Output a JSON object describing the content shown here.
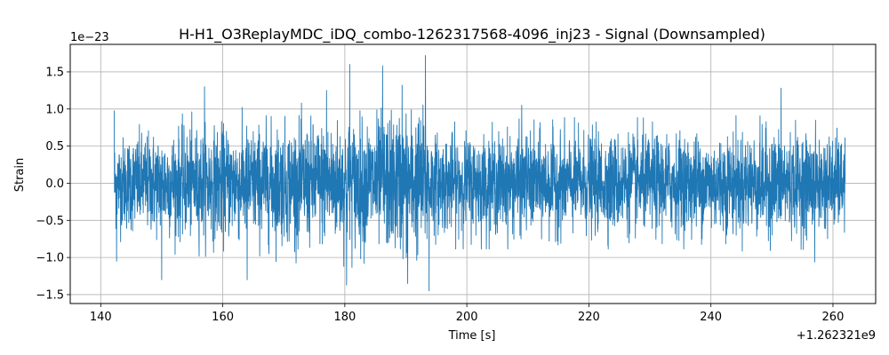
{
  "chart_data": {
    "type": "line",
    "title": "H-H1_O3ReplayMDC_iDQ_combo-1262317568-4096_inj23 - Signal (Downsampled)",
    "xlabel": "Time [s]",
    "ylabel": "Strain",
    "x_offset_label": "+1.262321e9",
    "y_scale_label": "1e−23",
    "xlim": [
      135,
      267
    ],
    "ylim": [
      -1.62,
      1.87
    ],
    "x_ticks": [
      140,
      160,
      180,
      200,
      220,
      240,
      260
    ],
    "x_tick_labels": [
      "140",
      "160",
      "180",
      "200",
      "220",
      "240",
      "260"
    ],
    "y_ticks": [
      -1.5,
      -1.0,
      -0.5,
      0.0,
      0.5,
      1.0,
      1.5
    ],
    "y_tick_labels": [
      "−1.5",
      "−1.0",
      "−0.5",
      "0.0",
      "0.5",
      "1.0",
      "1.5"
    ],
    "grid": true,
    "series": [
      {
        "color": "#1f77b4",
        "x_range": [
          142.2,
          262.0
        ],
        "envelope": {
          "x": [
            142,
            150,
            160,
            170,
            180,
            185,
            190,
            193.5,
            194,
            200,
            210,
            220,
            230,
            240,
            250,
            262
          ],
          "upper": [
            0.7,
            0.8,
            0.85,
            0.9,
            0.95,
            1.0,
            1.1,
            1.1,
            0.75,
            0.75,
            0.75,
            0.75,
            0.75,
            0.75,
            0.8,
            0.7
          ],
          "lower": [
            -0.7,
            -0.8,
            -0.85,
            -0.9,
            -0.95,
            -1.0,
            -1.1,
            -1.1,
            -0.75,
            -0.75,
            -0.75,
            -0.75,
            -0.75,
            -0.75,
            -0.8,
            -0.7
          ]
        },
        "peaks": [
          {
            "x": 141.8,
            "y": 0.98
          },
          {
            "x": 142.6,
            "y": -1.05
          },
          {
            "x": 150.0,
            "y": -1.3
          },
          {
            "x": 157.0,
            "y": 1.3
          },
          {
            "x": 164.0,
            "y": -1.3
          },
          {
            "x": 177.0,
            "y": 1.25
          },
          {
            "x": 180.3,
            "y": -1.37
          },
          {
            "x": 180.8,
            "y": 1.6
          },
          {
            "x": 186.2,
            "y": 1.58
          },
          {
            "x": 189.4,
            "y": 1.32
          },
          {
            "x": 190.3,
            "y": -1.35
          },
          {
            "x": 193.2,
            "y": 1.72
          },
          {
            "x": 193.8,
            "y": -1.45
          },
          {
            "x": 209.0,
            "y": 1.05
          },
          {
            "x": 251.5,
            "y": 1.28
          },
          {
            "x": 257.0,
            "y": -1.06
          }
        ]
      }
    ]
  }
}
